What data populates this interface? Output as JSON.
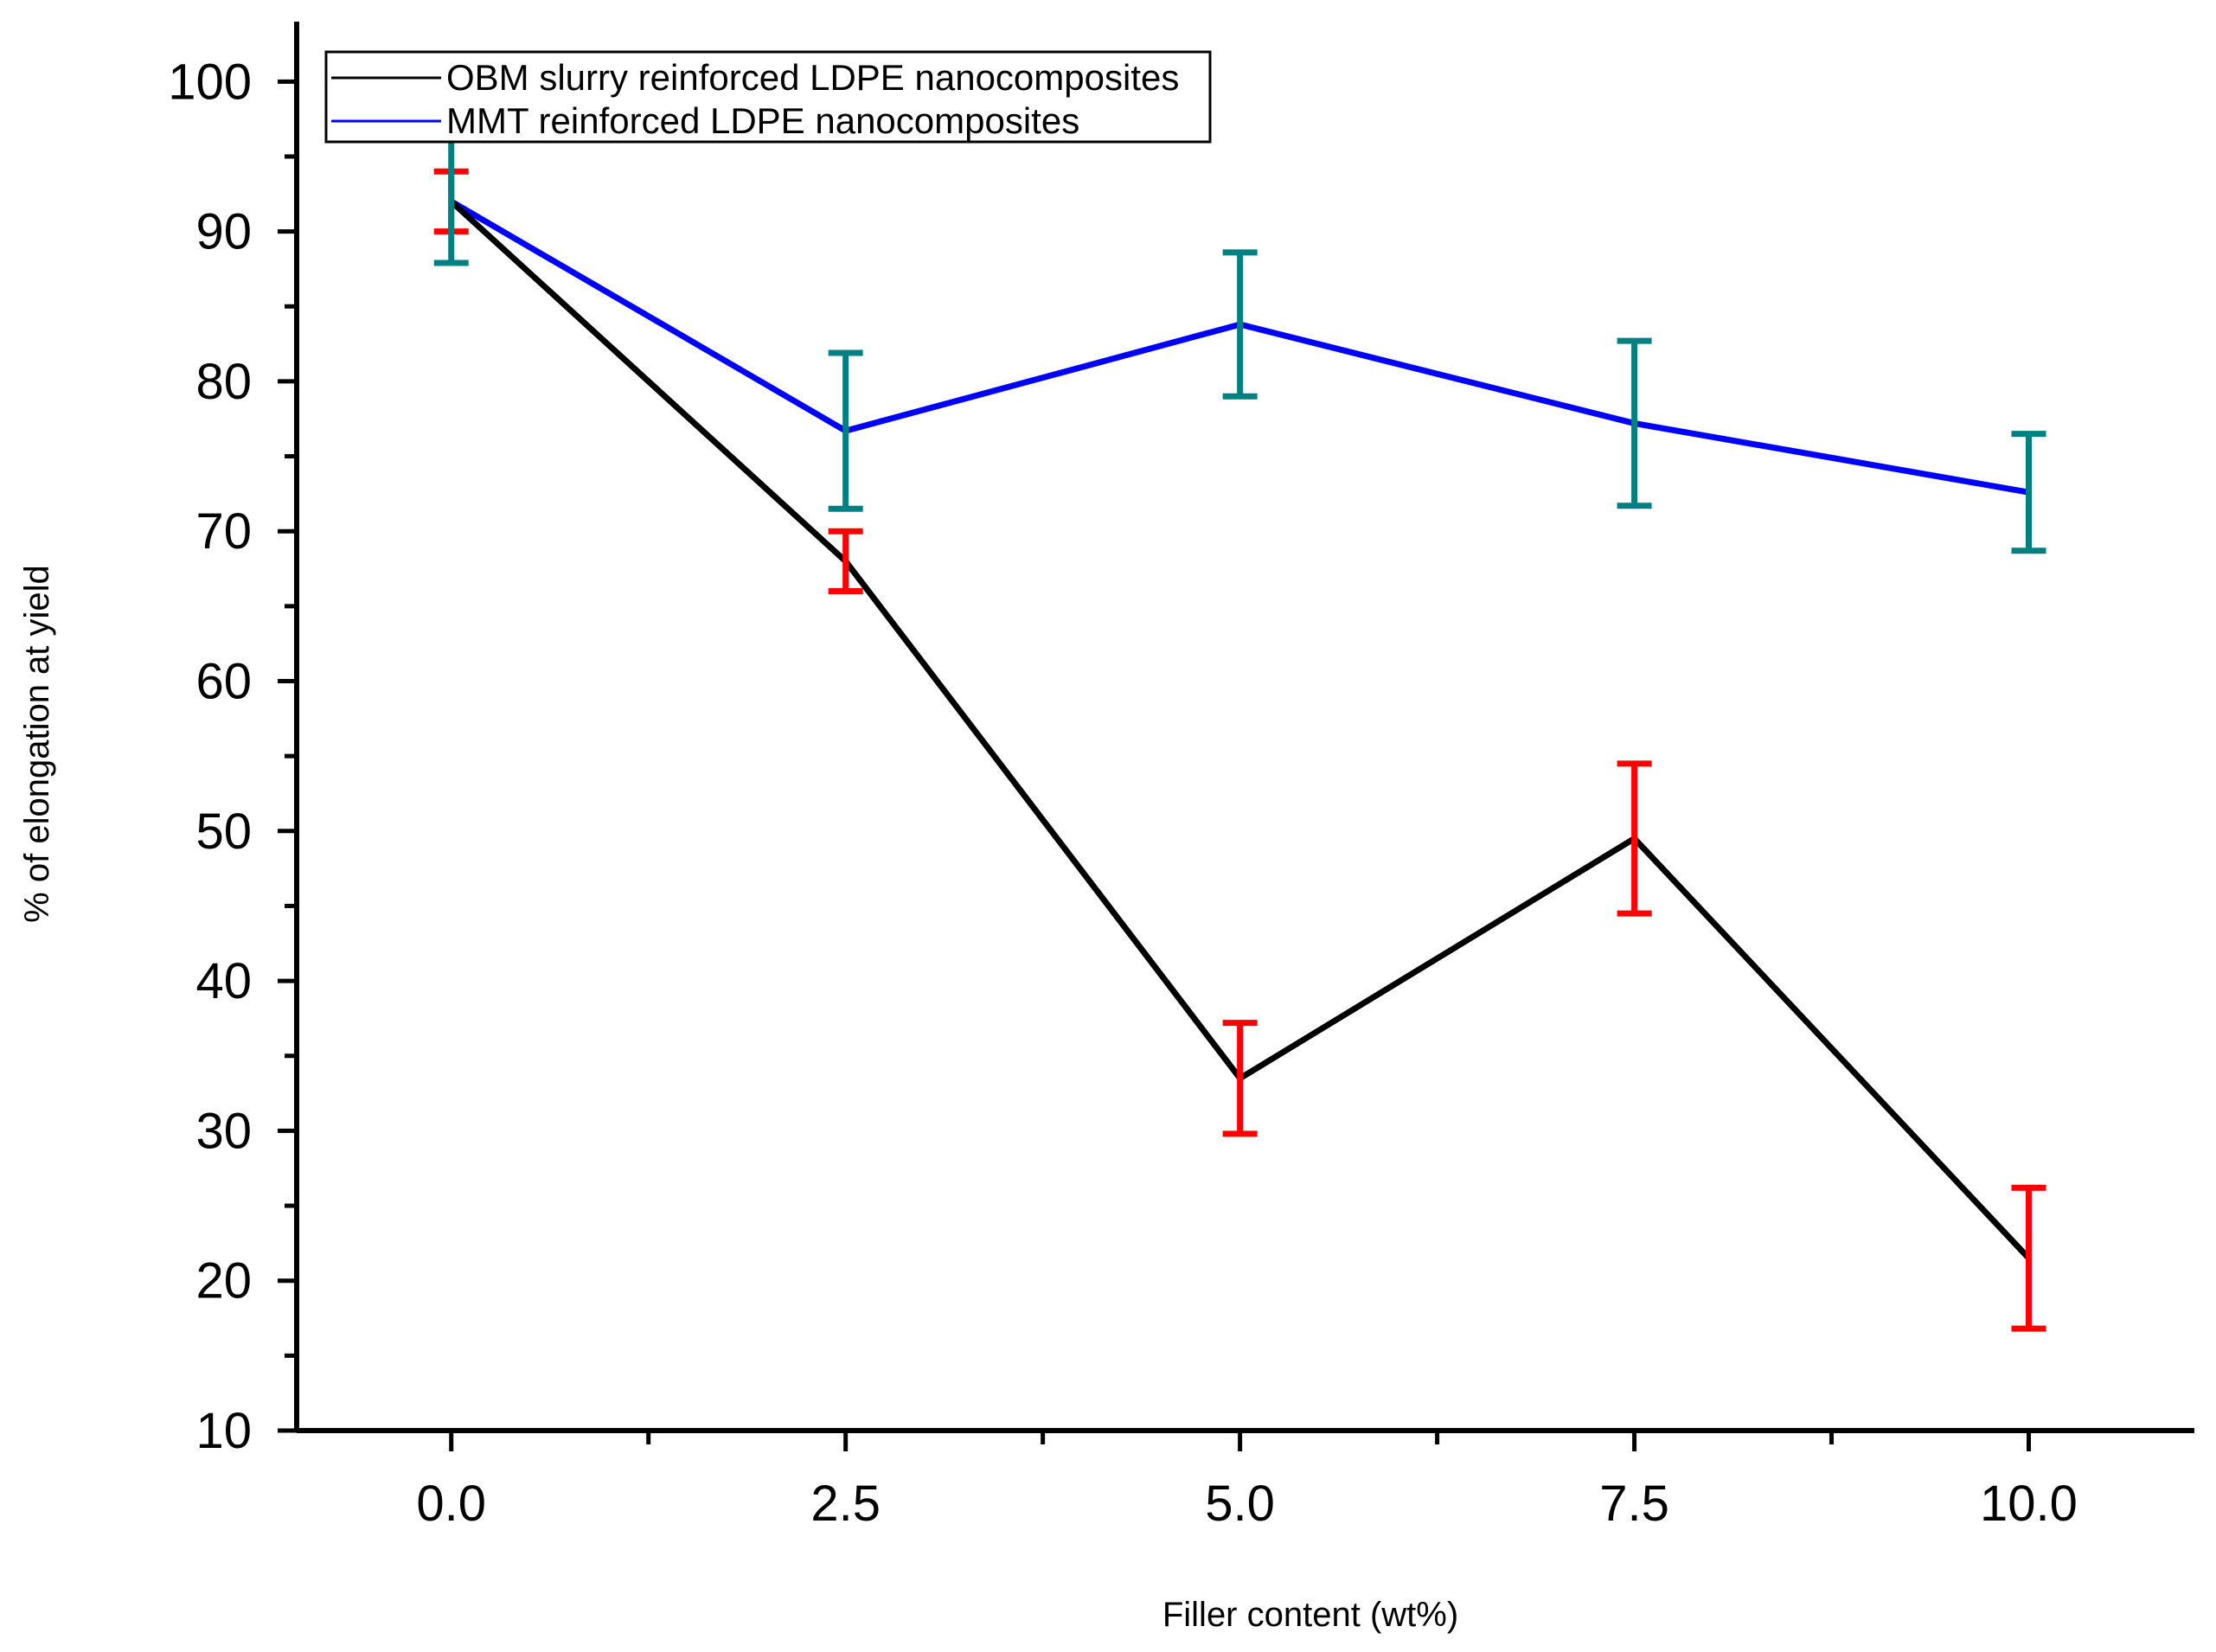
{
  "chart_data": {
    "type": "line",
    "title": "",
    "xlabel": "Filler content (wt%)",
    "ylabel": "% of elongation at yield",
    "xlim": [
      -0.98,
      11.05
    ],
    "ylim": [
      10,
      104
    ],
    "x": [
      0.0,
      2.5,
      5.0,
      7.5,
      10.0
    ],
    "x_tick_values": [
      0.0,
      2.5,
      5.0,
      7.5,
      10.0
    ],
    "x_tick_labels": [
      "0.0",
      "2.5",
      "5.0",
      "7.5",
      "10.0"
    ],
    "x_minor_ticks": [
      1.25,
      3.75,
      6.25,
      8.75
    ],
    "y_tick_values": [
      10,
      20,
      30,
      40,
      50,
      60,
      70,
      80,
      90,
      100
    ],
    "y_tick_labels": [
      "10",
      "20",
      "30",
      "40",
      "50",
      "60",
      "70",
      "80",
      "90",
      "100"
    ],
    "y_minor_ticks": [
      15,
      25,
      35,
      45,
      55,
      65,
      75,
      85,
      95
    ],
    "legend_position": "top-left",
    "series": [
      {
        "name": "OBM slurry reinforced LDPE nanocomposites",
        "color": "#000000",
        "error_color": "#ff0000",
        "values": [
          92,
          68,
          33.5,
          49.5,
          21.5
        ],
        "error": [
          2,
          2,
          3.7,
          5,
          4.7
        ]
      },
      {
        "name": "MMT reinforced LDPE nanocomposites",
        "color": "#0000ff",
        "error_color": "#008080",
        "values": [
          92,
          76.7,
          83.8,
          77.2,
          72.6
        ],
        "error": [
          4.1,
          5.2,
          4.8,
          5.5,
          3.9
        ]
      }
    ]
  }
}
